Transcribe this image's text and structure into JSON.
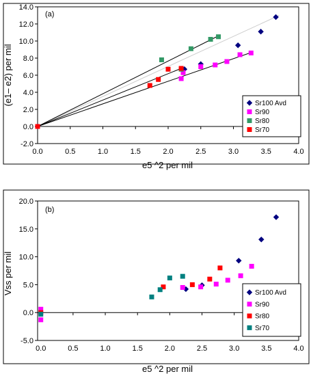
{
  "chart_data": [
    {
      "type": "scatter",
      "panel_label": "(a)",
      "xlabel": "e5 ^2   per mil",
      "ylabel": "(e1– e2)  per mil",
      "xlim": [
        0.0,
        4.0
      ],
      "ylim": [
        -2.0,
        14.0
      ],
      "xticks": [
        "0.0",
        "0.5",
        "1.0",
        "1.5",
        "2.0",
        "2.5",
        "3.0",
        "3.5",
        "4.0"
      ],
      "yticks": [
        "-2.0",
        "0.0",
        "2.0",
        "4.0",
        "6.0",
        "8.0",
        "10.0",
        "12.0",
        "14.0"
      ],
      "xtick_values": [
        0,
        0.5,
        1,
        1.5,
        2,
        2.5,
        3,
        3.5,
        4
      ],
      "ytick_values": [
        -2,
        0,
        2,
        4,
        6,
        8,
        10,
        12,
        14
      ],
      "grid": false,
      "legend_position": "bottom-right",
      "series": [
        {
          "name": "Sr100 Avd",
          "marker": "diamond",
          "color": "#000080",
          "x": [
            0.0,
            2.25,
            2.5,
            3.07,
            3.42,
            3.65
          ],
          "y": [
            0.0,
            6.7,
            7.3,
            9.5,
            11.1,
            12.8
          ]
        },
        {
          "name": "Sr90",
          "marker": "square",
          "color": "#ff00ff",
          "x": [
            0.0,
            2.2,
            2.23,
            2.5,
            2.72,
            2.9,
            3.1,
            3.27
          ],
          "y": [
            0.0,
            5.6,
            6.3,
            7.0,
            7.2,
            7.6,
            8.4,
            8.6
          ]
        },
        {
          "name": "Sr80",
          "marker": "square",
          "color": "#339966",
          "x": [
            0.0,
            1.9,
            2.2,
            2.35,
            2.65,
            2.77
          ],
          "y": [
            0.0,
            7.8,
            6.7,
            9.1,
            10.2,
            10.5
          ]
        },
        {
          "name": "Sr70",
          "marker": "square",
          "color": "#ff0000",
          "x": [
            0.0,
            1.72,
            1.85,
            2.0,
            2.2
          ],
          "y": [
            0.0,
            4.8,
            5.5,
            6.7,
            6.8
          ]
        }
      ],
      "trendlines": [
        {
          "color": "#cccccc",
          "x": [
            0.0,
            3.7
          ],
          "y": [
            0.0,
            13.0
          ]
        },
        {
          "color": "#000000",
          "x": [
            0.0,
            2.77
          ],
          "y": [
            0.0,
            10.6
          ]
        },
        {
          "color": "#000000",
          "x": [
            0.0,
            2.25
          ],
          "y": [
            0.0,
            6.95
          ]
        },
        {
          "color": "#000000",
          "x": [
            0.0,
            3.27
          ],
          "y": [
            0.0,
            8.65
          ]
        }
      ]
    },
    {
      "type": "scatter",
      "panel_label": "(b)",
      "xlabel": "e5 ^2   per mil",
      "ylabel": "Vss        per mil",
      "xlim": [
        -0.05,
        4.0
      ],
      "ylim": [
        -5.0,
        20.0
      ],
      "xticks": [
        "0.0",
        "0.5",
        "1.0",
        "1.5",
        "2.0",
        "2.5",
        "3.0",
        "3.5",
        "4.0"
      ],
      "yticks": [
        "-5.0",
        "0.0",
        "5.0",
        "10.0",
        "15.0",
        "20.0"
      ],
      "xtick_values": [
        0,
        0.5,
        1,
        1.5,
        2,
        2.5,
        3,
        3.5,
        4
      ],
      "ytick_values": [
        -5,
        0,
        5,
        10,
        15,
        20
      ],
      "grid": false,
      "legend_position": "bottom-right",
      "series": [
        {
          "name": "Sr100 Avd",
          "marker": "diamond",
          "color": "#000080",
          "x": [
            0.0,
            2.25,
            2.5,
            3.07,
            3.42,
            3.65
          ],
          "y": [
            0.0,
            4.2,
            4.9,
            9.3,
            13.1,
            17.1
          ]
        },
        {
          "name": "Sr90",
          "marker": "square",
          "color": "#ff00ff",
          "x": [
            0.0,
            0.0,
            2.2,
            2.48,
            2.72,
            2.9,
            3.1,
            3.27
          ],
          "y": [
            0.6,
            -1.3,
            4.5,
            4.6,
            5.1,
            5.8,
            6.6,
            8.3
          ]
        },
        {
          "name": "Sr80",
          "marker": "square",
          "color": "#ff0000",
          "x": [
            0.0,
            1.9,
            2.35,
            2.62,
            2.78
          ],
          "y": [
            0.0,
            4.6,
            5.0,
            6.0,
            8.0
          ]
        },
        {
          "name": "Sr70",
          "marker": "square",
          "color": "#008080",
          "x": [
            0.0,
            1.72,
            1.85,
            2.0,
            2.2
          ],
          "y": [
            -0.3,
            2.8,
            4.1,
            6.2,
            6.5
          ]
        }
      ]
    }
  ]
}
